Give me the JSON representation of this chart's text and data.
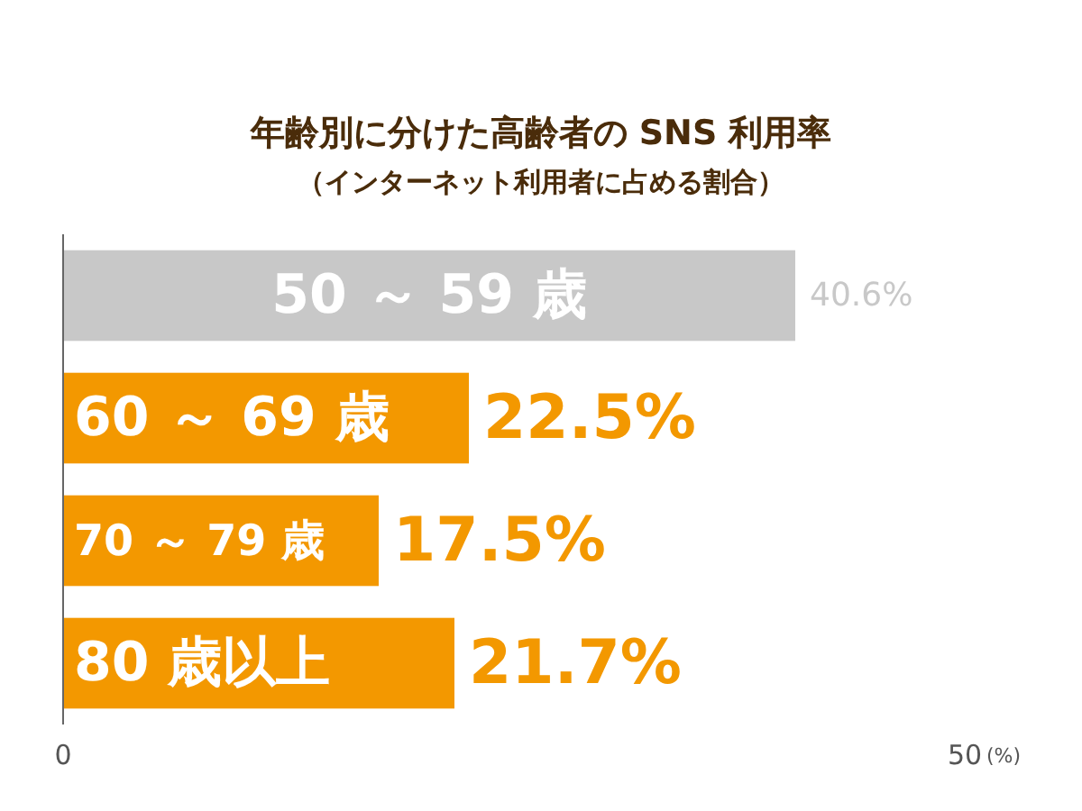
{
  "chart_data": {
    "type": "bar",
    "orientation": "horizontal",
    "title": "年齢別に分けた高齢者の SNS 利用率",
    "subtitle": "（インターネット利用者に占める割合）",
    "xlabel": "(%)",
    "categories": [
      "50 ～ 59 歳",
      "60 ～ 69 歳",
      "70 ～ 79 歳",
      "80 歳以上"
    ],
    "values": [
      40.6,
      22.5,
      17.5,
      21.7
    ],
    "colors": [
      "#c8c8c8",
      "#f39800",
      "#f39800",
      "#f39800"
    ],
    "value_labels": [
      "40.6%",
      "22.5%",
      "17.5%",
      "21.7%"
    ],
    "xlim": [
      0,
      50
    ],
    "xticks": [
      0,
      50
    ]
  }
}
